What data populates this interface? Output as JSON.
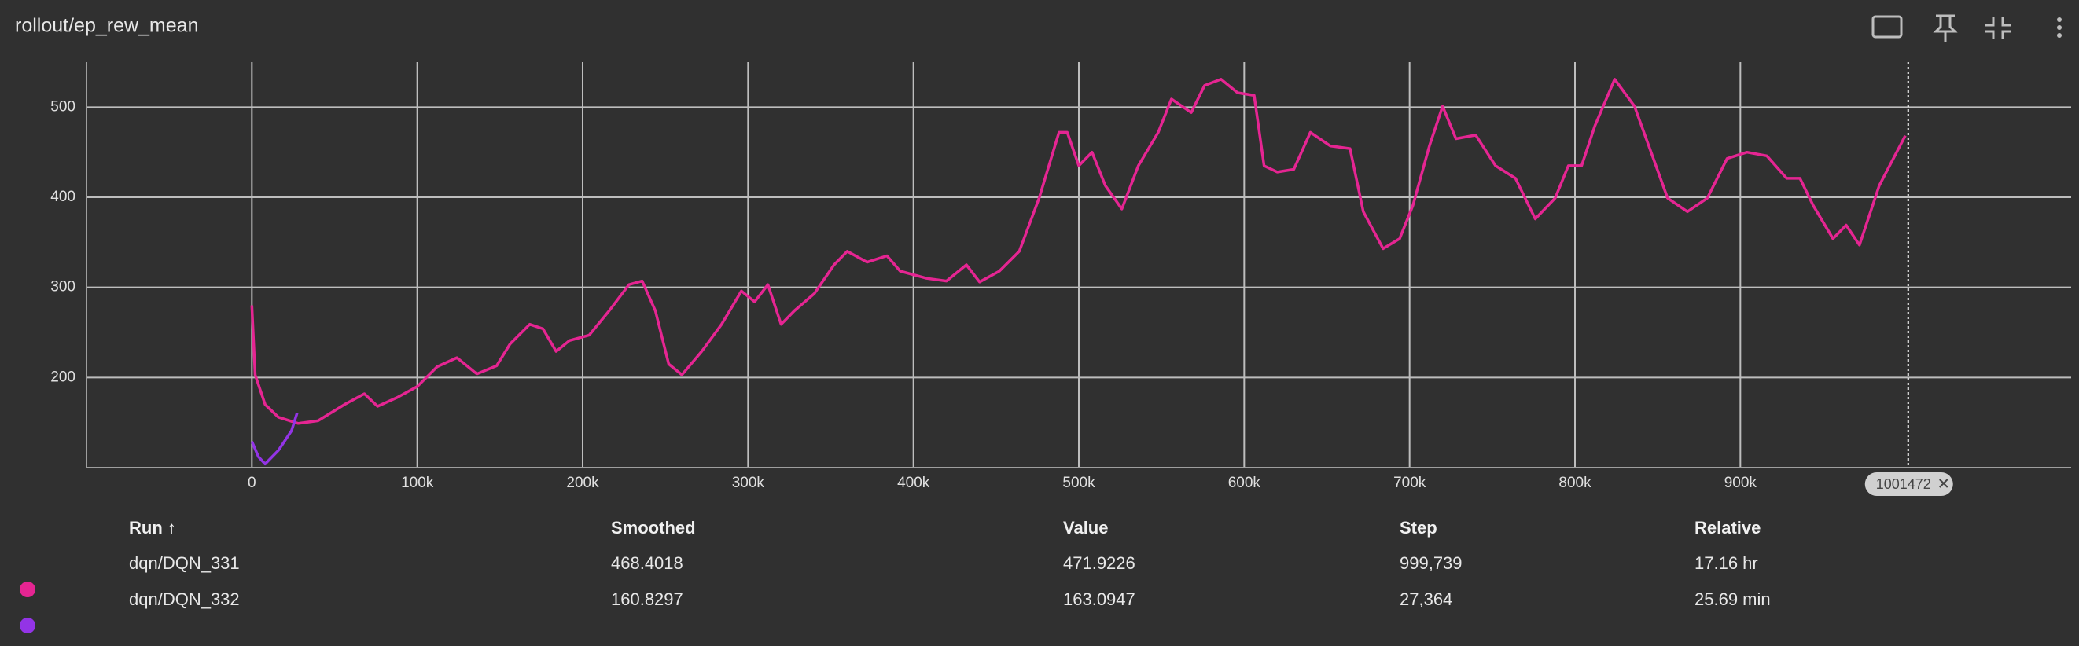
{
  "header": {
    "title": "rollout/ep_rew_mean"
  },
  "chart_data": {
    "type": "line",
    "xlim": [
      -100000,
      1100000
    ],
    "ylim": [
      100,
      550
    ],
    "xticks": [
      {
        "value": 0,
        "label": "0"
      },
      {
        "value": 100000,
        "label": "100k"
      },
      {
        "value": 200000,
        "label": "200k"
      },
      {
        "value": 300000,
        "label": "300k"
      },
      {
        "value": 400000,
        "label": "400k"
      },
      {
        "value": 500000,
        "label": "500k"
      },
      {
        "value": 600000,
        "label": "600k"
      },
      {
        "value": 700000,
        "label": "700k"
      },
      {
        "value": 800000,
        "label": "800k"
      },
      {
        "value": 900000,
        "label": "900k"
      }
    ],
    "yticks": [
      200,
      300,
      400,
      500
    ],
    "grid": true,
    "cursor": 1001472,
    "series": [
      {
        "name": "dqn/DQN_331",
        "color": "#e52592",
        "x": [
          0,
          2000,
          8000,
          16000,
          28000,
          40000,
          56000,
          68000,
          76000,
          88000,
          100000,
          112000,
          124000,
          136000,
          148000,
          156000,
          168000,
          176000,
          184000,
          192000,
          204000,
          216000,
          228000,
          236000,
          244000,
          252000,
          260000,
          272000,
          284000,
          296000,
          304000,
          312000,
          320000,
          328000,
          340000,
          352000,
          360000,
          372000,
          384000,
          392000,
          408000,
          420000,
          432000,
          440000,
          452000,
          464000,
          476000,
          488000,
          493000,
          500000,
          508000,
          516000,
          526000,
          536000,
          548000,
          556000,
          568000,
          576000,
          586000,
          596000,
          606000,
          612000,
          620000,
          630000,
          640000,
          652000,
          664000,
          672000,
          684000,
          694000,
          702000,
          712000,
          720000,
          728000,
          740000,
          752000,
          764000,
          776000,
          788000,
          796000,
          804000,
          812000,
          824000,
          836000,
          846000,
          856000,
          868000,
          880000,
          892000,
          904000,
          916000,
          928000,
          936000,
          944000,
          956000,
          964000,
          972000,
          984000,
          999739
        ],
        "values": [
          280,
          203,
          170,
          156,
          149,
          152,
          170,
          182,
          168,
          178,
          190,
          212,
          222,
          204,
          213,
          237,
          259,
          254,
          229,
          241,
          247,
          274,
          303,
          307,
          274,
          215,
          203,
          229,
          259,
          296,
          284,
          303,
          259,
          274,
          293,
          325,
          340,
          328,
          335,
          318,
          310,
          307,
          325,
          306,
          318,
          340,
          399,
          472,
          472,
          435,
          450,
          413,
          387,
          435,
          472,
          509,
          494,
          524,
          531,
          516,
          513,
          435,
          428,
          431,
          472,
          457,
          454,
          384,
          343,
          354,
          391,
          457,
          501,
          465,
          469,
          435,
          421,
          376,
          399,
          435,
          435,
          479,
          531,
          501,
          450,
          399,
          384,
          399,
          443,
          450,
          446,
          421,
          421,
          391,
          354,
          369,
          347,
          413,
          468.4
        ]
      },
      {
        "name": "dqn/DQN_332",
        "color": "#9334e6",
        "x": [
          0,
          4000,
          8000,
          16000,
          24000,
          27364
        ],
        "values": [
          129,
          112,
          104,
          119,
          141,
          160.8
        ]
      }
    ]
  },
  "table": {
    "headers": [
      "Run ↑",
      "Smoothed",
      "Value",
      "Step",
      "Relative"
    ],
    "rows": [
      [
        "dqn/DQN_331",
        "468.4018",
        "471.9226",
        "999,739",
        "17.16 hr"
      ],
      [
        "dqn/DQN_332",
        "160.8297",
        "163.0947",
        "27,364",
        "25.69 min"
      ]
    ]
  }
}
